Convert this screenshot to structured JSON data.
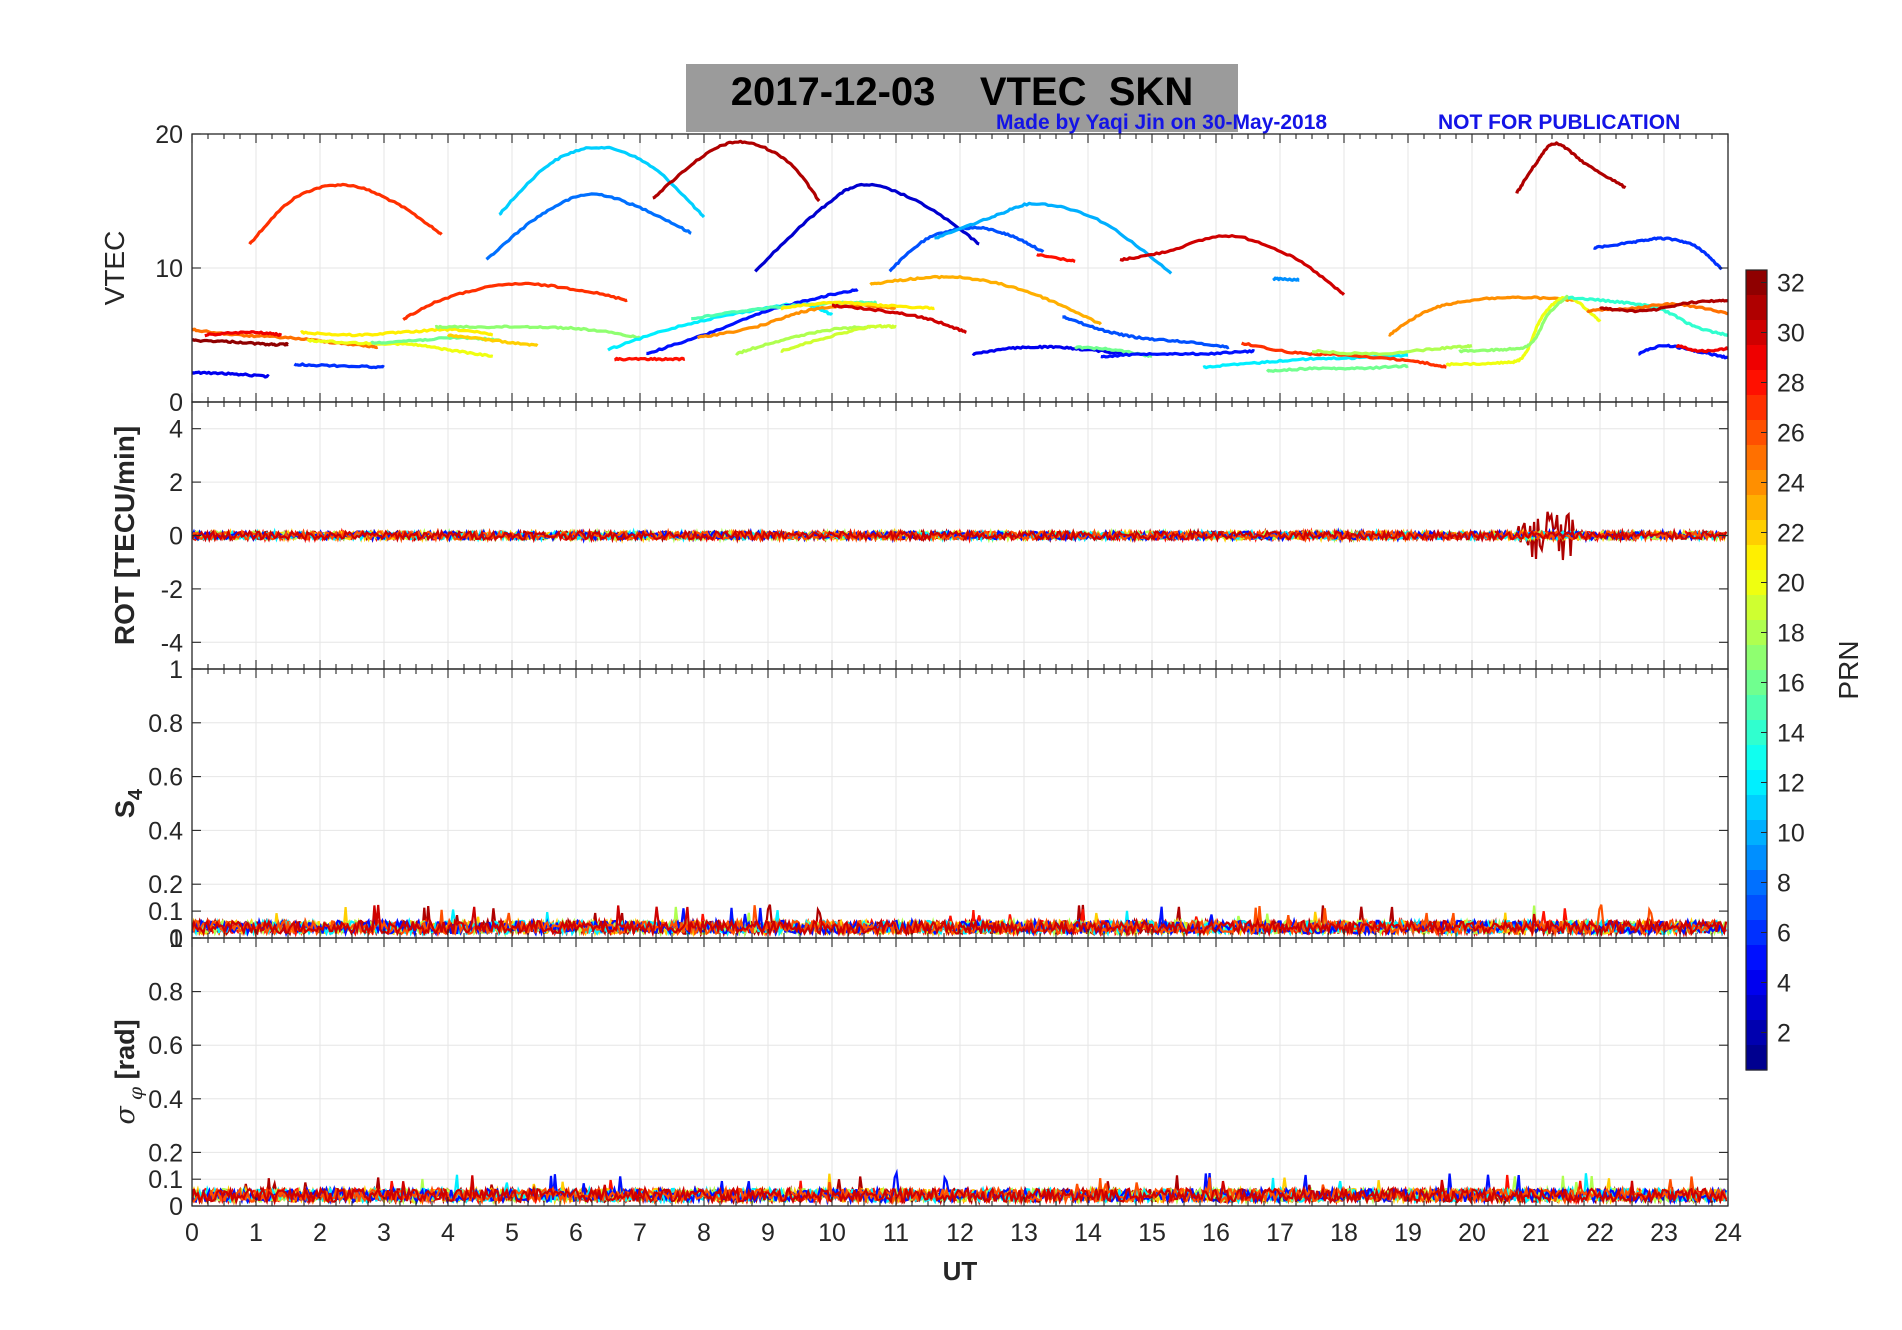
{
  "figure": {
    "title": "2017-12-03    VTEC  SKN",
    "credit": "Made by Yaqi Jin on 30-May-2018",
    "watermark": "NOT FOR PUBLICATION"
  },
  "colorbar": {
    "label": "PRN",
    "range": [
      1,
      32
    ],
    "ticks": [
      "2",
      "4",
      "6",
      "8",
      "10",
      "12",
      "14",
      "16",
      "18",
      "20",
      "22",
      "24",
      "26",
      "28",
      "30",
      "32"
    ],
    "colormap": "jet"
  },
  "chart_data": [
    {
      "type": "line",
      "panel": "VTEC",
      "ylabel": "VTEC",
      "xlim": [
        0,
        24
      ],
      "ylim": [
        0,
        20
      ],
      "yticks": [
        "0",
        "10",
        "20"
      ],
      "grid": true,
      "series": [
        {
          "prn": 27,
          "x": [
            0.9,
            1.6,
            2.4,
            3.2,
            3.9
          ],
          "y": [
            11.8,
            15.2,
            16.2,
            14.8,
            12.5
          ]
        },
        {
          "prn": 11,
          "x": [
            4.8,
            5.6,
            6.4,
            7.2,
            8.0
          ],
          "y": [
            14.0,
            17.8,
            19.0,
            17.5,
            13.8
          ]
        },
        {
          "prn": 8,
          "x": [
            4.6,
            5.4,
            6.2,
            7.0,
            7.8
          ],
          "y": [
            10.6,
            13.8,
            15.5,
            14.5,
            12.6
          ]
        },
        {
          "prn": 31,
          "x": [
            7.2,
            8.0,
            8.6,
            9.3,
            9.8
          ],
          "y": [
            15.2,
            18.4,
            19.4,
            18.0,
            15.0
          ]
        },
        {
          "prn": 3,
          "x": [
            8.8,
            9.8,
            10.5,
            11.4,
            12.3
          ],
          "y": [
            9.8,
            14.3,
            16.2,
            14.8,
            11.8
          ]
        },
        {
          "prn": 31,
          "x": [
            20.7,
            21.0,
            21.3,
            21.8,
            22.4
          ],
          "y": [
            15.6,
            17.8,
            19.3,
            17.7,
            16.0
          ]
        },
        {
          "prn": 7,
          "x": [
            10.9,
            11.5,
            12.2,
            12.8,
            13.3
          ],
          "y": [
            9.8,
            12.2,
            13.0,
            12.4,
            11.2
          ]
        },
        {
          "prn": 10,
          "x": [
            11.6,
            12.5,
            13.2,
            14.2,
            15.3
          ],
          "y": [
            12.2,
            13.8,
            14.8,
            13.5,
            9.6
          ]
        },
        {
          "prn": 30,
          "x": [
            14.5,
            15.2,
            16.2,
            17.2,
            18.0
          ],
          "y": [
            10.6,
            11.2,
            12.4,
            10.8,
            8.0
          ]
        },
        {
          "prn": 28,
          "x": [
            13.2,
            13.8
          ],
          "y": [
            11.0,
            10.5
          ]
        },
        {
          "prn": 9,
          "x": [
            16.9,
            17.3
          ],
          "y": [
            9.2,
            9.1
          ]
        },
        {
          "prn": 6,
          "x": [
            21.9,
            22.5,
            23.0,
            23.5,
            23.9
          ],
          "y": [
            11.5,
            11.9,
            12.2,
            11.6,
            9.9
          ]
        },
        {
          "prn": 27,
          "x": [
            3.3,
            4.0,
            5.0,
            6.0,
            6.8
          ],
          "y": [
            6.2,
            7.8,
            8.8,
            8.4,
            7.6
          ]
        },
        {
          "prn": 23,
          "x": [
            10.6,
            11.3,
            12.0,
            12.8,
            13.5,
            14.2
          ],
          "y": [
            8.8,
            9.2,
            9.3,
            8.6,
            7.4,
            5.8
          ]
        },
        {
          "prn": 25,
          "x": [
            0.0,
            0.7,
            1.5,
            2.3,
            2.9
          ],
          "y": [
            5.4,
            5.0,
            4.8,
            4.4,
            4.1
          ]
        },
        {
          "prn": 32,
          "x": [
            0.0,
            0.6,
            1.2,
            1.5
          ],
          "y": [
            4.6,
            4.5,
            4.3,
            4.3
          ]
        },
        {
          "prn": 29,
          "x": [
            0.2,
            0.9,
            1.4
          ],
          "y": [
            5.0,
            5.2,
            5.0
          ]
        },
        {
          "prn": 21,
          "x": [
            1.7,
            2.5,
            3.3,
            4.1,
            4.7
          ],
          "y": [
            5.2,
            5.0,
            5.2,
            5.4,
            5.0
          ]
        },
        {
          "prn": 20,
          "x": [
            1.8,
            2.6,
            3.4,
            4.0,
            4.7
          ],
          "y": [
            4.6,
            4.4,
            4.3,
            3.9,
            3.4
          ]
        },
        {
          "prn": 17,
          "x": [
            3.8,
            4.6,
            5.4,
            6.2,
            7.0
          ],
          "y": [
            5.6,
            5.6,
            5.6,
            5.4,
            4.8
          ]
        },
        {
          "prn": 16,
          "x": [
            2.8,
            3.5,
            4.2,
            4.8
          ],
          "y": [
            4.4,
            4.6,
            4.8,
            4.6
          ]
        },
        {
          "prn": 22,
          "x": [
            4.0,
            4.7,
            5.4
          ],
          "y": [
            5.0,
            4.6,
            4.2
          ]
        },
        {
          "prn": 4,
          "x": [
            0.0,
            0.6,
            1.2
          ],
          "y": [
            2.2,
            2.1,
            1.9
          ]
        },
        {
          "prn": 6,
          "x": [
            1.6,
            2.3,
            3.0
          ],
          "y": [
            2.8,
            2.7,
            2.6
          ]
        },
        {
          "prn": 28,
          "x": [
            6.6,
            7.2,
            7.7
          ],
          "y": [
            3.2,
            3.2,
            3.2
          ]
        },
        {
          "prn": 12,
          "x": [
            6.5,
            7.5,
            8.5,
            9.5,
            10.0
          ],
          "y": [
            3.9,
            5.5,
            6.6,
            7.3,
            6.5
          ]
        },
        {
          "prn": 5,
          "x": [
            7.1,
            8.0,
            9.0,
            9.8,
            10.4
          ],
          "y": [
            3.6,
            5.0,
            6.8,
            7.8,
            8.4
          ]
        },
        {
          "prn": 15,
          "x": [
            7.8,
            8.6,
            9.4,
            10.2,
            10.7
          ],
          "y": [
            6.2,
            6.8,
            7.2,
            7.4,
            7.4
          ]
        },
        {
          "prn": 24,
          "x": [
            7.9,
            8.8,
            9.6,
            10.4,
            11.0
          ],
          "y": [
            4.8,
            5.6,
            6.8,
            7.2,
            7.0
          ]
        },
        {
          "prn": 21,
          "x": [
            9.2,
            10.0,
            10.8,
            11.6
          ],
          "y": [
            7.0,
            7.4,
            7.2,
            7.0
          ]
        },
        {
          "prn": 18,
          "x": [
            8.5,
            9.2,
            10.0,
            10.6
          ],
          "y": [
            3.6,
            4.6,
            5.4,
            5.6
          ]
        },
        {
          "prn": 19,
          "x": [
            9.2,
            9.9,
            10.6,
            11.0
          ],
          "y": [
            3.8,
            4.8,
            5.6,
            5.6
          ]
        },
        {
          "prn": 30,
          "x": [
            10.0,
            10.8,
            11.5,
            12.1
          ],
          "y": [
            7.2,
            6.8,
            6.2,
            5.2
          ]
        },
        {
          "prn": 4,
          "x": [
            12.2,
            12.8,
            13.4,
            14.0,
            14.6
          ],
          "y": [
            3.6,
            4.0,
            4.1,
            3.9,
            3.6
          ]
        },
        {
          "prn": 7,
          "x": [
            13.6,
            14.2,
            14.8,
            15.5,
            16.2
          ],
          "y": [
            6.4,
            5.4,
            4.8,
            4.5,
            4.1
          ]
        },
        {
          "prn": 16,
          "x": [
            13.8,
            14.4,
            15.0
          ],
          "y": [
            4.1,
            3.9,
            3.4
          ]
        },
        {
          "prn": 5,
          "x": [
            14.2,
            15.0,
            15.8,
            16.6
          ],
          "y": [
            3.4,
            3.6,
            3.6,
            3.8
          ]
        },
        {
          "prn": 12,
          "x": [
            15.8,
            16.6,
            17.4,
            18.2,
            19.0
          ],
          "y": [
            2.6,
            2.9,
            3.2,
            3.3,
            3.5
          ]
        },
        {
          "prn": 27,
          "x": [
            16.4,
            17.2,
            18.0,
            19.0,
            19.6
          ],
          "y": [
            4.4,
            3.7,
            3.5,
            3.1,
            2.6
          ]
        },
        {
          "prn": 16,
          "x": [
            16.8,
            17.5,
            18.2,
            19.0
          ],
          "y": [
            2.3,
            2.5,
            2.5,
            2.7
          ]
        },
        {
          "prn": 18,
          "x": [
            17.5,
            18.5,
            19.5,
            20.0
          ],
          "y": [
            3.8,
            3.6,
            4.0,
            4.2
          ]
        },
        {
          "prn": 24,
          "x": [
            18.7,
            19.3,
            20.0,
            20.8,
            21.6
          ],
          "y": [
            5.0,
            6.8,
            7.6,
            7.8,
            7.6
          ]
        },
        {
          "prn": 20,
          "x": [
            19.6,
            20.4,
            20.8,
            21.1,
            21.5,
            22.0
          ],
          "y": [
            2.8,
            2.9,
            3.4,
            6.4,
            7.8,
            6.0
          ]
        },
        {
          "prn": 17,
          "x": [
            19.8,
            20.4,
            20.9,
            21.2,
            21.5
          ],
          "y": [
            3.8,
            3.9,
            4.3,
            6.6,
            7.9
          ]
        },
        {
          "prn": 14,
          "x": [
            21.5,
            22.2,
            22.9,
            23.5,
            24.0
          ],
          "y": [
            7.8,
            7.5,
            7.0,
            5.6,
            5.0
          ]
        },
        {
          "prn": 25,
          "x": [
            21.8,
            22.5,
            23.2,
            24.0
          ],
          "y": [
            6.8,
            7.0,
            7.3,
            6.6
          ]
        },
        {
          "prn": 31,
          "x": [
            22.0,
            22.7,
            23.4,
            24.0
          ],
          "y": [
            7.0,
            6.8,
            7.4,
            7.6
          ]
        },
        {
          "prn": 5,
          "x": [
            22.6,
            23.0,
            23.5,
            24.0
          ],
          "y": [
            3.6,
            4.2,
            3.8,
            3.3
          ]
        },
        {
          "prn": 29,
          "x": [
            23.2,
            23.6,
            24.0
          ],
          "y": [
            4.2,
            3.8,
            4.0
          ]
        }
      ]
    },
    {
      "type": "line",
      "panel": "ROT",
      "ylabel": "ROT [TECU/min]",
      "xlim": [
        0,
        24
      ],
      "ylim": [
        -5,
        5
      ],
      "yticks": [
        "-4",
        "-2",
        "0",
        "2",
        "4"
      ],
      "grid": true,
      "baseline": 0,
      "typical_amplitude": 0.15,
      "disturbance": {
        "x_range": [
          20.7,
          21.6
        ],
        "min": -1.0,
        "max": 1.1,
        "prn": 31
      }
    },
    {
      "type": "line",
      "panel": "S4",
      "ylabel": "S4",
      "xlim": [
        0,
        24
      ],
      "ylim": [
        0,
        1
      ],
      "yticks": [
        "0",
        "0.1",
        "0.2",
        "0.4",
        "0.6",
        "0.8",
        "1"
      ],
      "grid": true,
      "typical_value": 0.04
    },
    {
      "type": "line",
      "panel": "sigma_phi",
      "ylabel": "σ φ [rad]",
      "xlabel": "UT",
      "xlim": [
        0,
        24
      ],
      "ylim": [
        0,
        1
      ],
      "yticks": [
        "0",
        "0.1",
        "0.2",
        "0.4",
        "0.6",
        "0.8",
        "1"
      ],
      "xticks": [
        "0",
        "1",
        "2",
        "3",
        "4",
        "5",
        "6",
        "7",
        "8",
        "9",
        "10",
        "11",
        "12",
        "13",
        "14",
        "15",
        "16",
        "17",
        "18",
        "19",
        "20",
        "21",
        "22",
        "23",
        "24"
      ],
      "grid": true,
      "typical_value": 0.04
    }
  ]
}
